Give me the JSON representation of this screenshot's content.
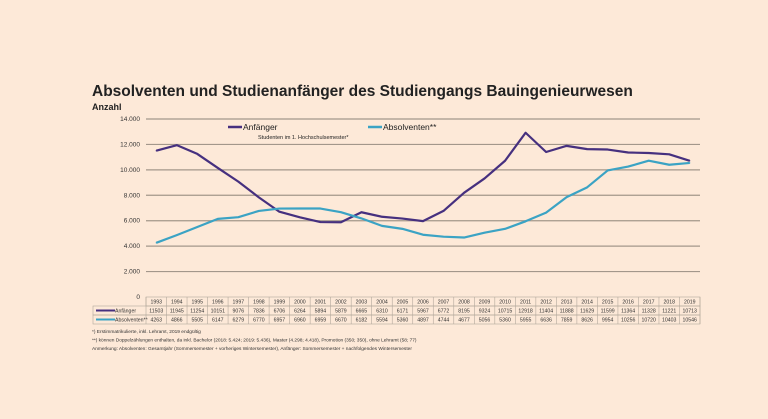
{
  "chart_data": {
    "type": "line",
    "title": "Absolventen und Studienanfänger des Studiengangs Bauingenieurwesen",
    "ylabel": "Anzahl",
    "ylim": [
      0,
      14000
    ],
    "yticks": [
      "0",
      "2.000",
      "4.000",
      "6.000",
      "8.000",
      "10.000",
      "12.000",
      "14.000"
    ],
    "grid": true,
    "legend_placement": "top-center",
    "legend_note": "Studenten im 1. Hochschulsemester*",
    "categories": [
      "1993",
      "1994",
      "1995",
      "1996",
      "1997",
      "1998",
      "1999",
      "2000",
      "2001",
      "2002",
      "2003",
      "2004",
      "2005",
      "2006",
      "2007",
      "2008",
      "2009",
      "2010",
      "2011",
      "2012",
      "2013",
      "2014",
      "2015",
      "2016",
      "2017",
      "2018",
      "2019"
    ],
    "series": [
      {
        "name": "Anfänger",
        "color": "#46307f",
        "values": [
          11503,
          11945,
          11254,
          10151,
          9076,
          7836,
          6706,
          6264,
          5894,
          5879,
          6665,
          6310,
          6171,
          5967,
          6772,
          8195,
          9324,
          10715,
          12918,
          11404,
          11888,
          11629,
          11599,
          11364,
          11328,
          11221,
          10713
        ]
      },
      {
        "name": "Absolventen**",
        "color": "#3ba3c4",
        "values": [
          4263,
          4866,
          5505,
          6147,
          6279,
          6770,
          6957,
          6960,
          6959,
          6670,
          6182,
          5594,
          5360,
          4897,
          4744,
          4677,
          5056,
          5360,
          5955,
          6636,
          7859,
          8626,
          9954,
          10256,
          10720,
          10403,
          10546
        ]
      }
    ],
    "footnotes": [
      "*) Erstimmatrikulierte, inkl. Lehramt, 2019 endgültig",
      "**) können Doppelzählungen enthalten, da inkl. Bachelor (2018: 5.424; 2019: 5.436), Master (4.298; 4.418), Promotion (350; 350), ohne Lehramt (58; 77)",
      "Anmerkung: Absolventen: Gesamtjahr (Sommersemester + vorheriges Wintersemester), Anfänger: Sommersemester + nachfolgendes Wintersemester"
    ]
  }
}
